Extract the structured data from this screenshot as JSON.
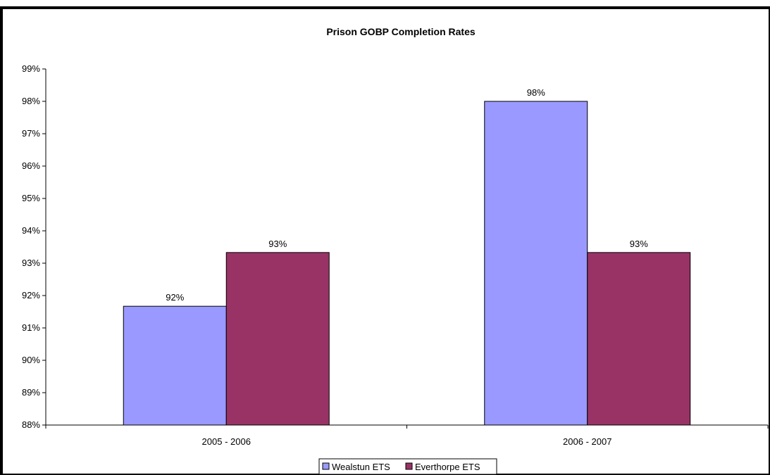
{
  "chart_data": {
    "type": "bar",
    "title": "Prison GOBP Completion Rates",
    "xlabel": "",
    "ylabel": "",
    "categories": [
      "2005 - 2006",
      "2006 - 2007"
    ],
    "series": [
      {
        "name": "Wealstun ETS",
        "values": [
          91.67,
          98.0
        ],
        "labels": [
          "92%",
          "98%"
        ],
        "color": "#9999ff"
      },
      {
        "name": "Everthorpe ETS",
        "values": [
          93.33,
          93.33
        ],
        "labels": [
          "93%",
          "93%"
        ],
        "color": "#993366"
      }
    ],
    "ylim": [
      88,
      99
    ],
    "yticks": [
      "88%",
      "89%",
      "90%",
      "91%",
      "92%",
      "93%",
      "94%",
      "95%",
      "96%",
      "97%",
      "98%",
      "99%"
    ],
    "grid": false,
    "legend": "bottom"
  }
}
